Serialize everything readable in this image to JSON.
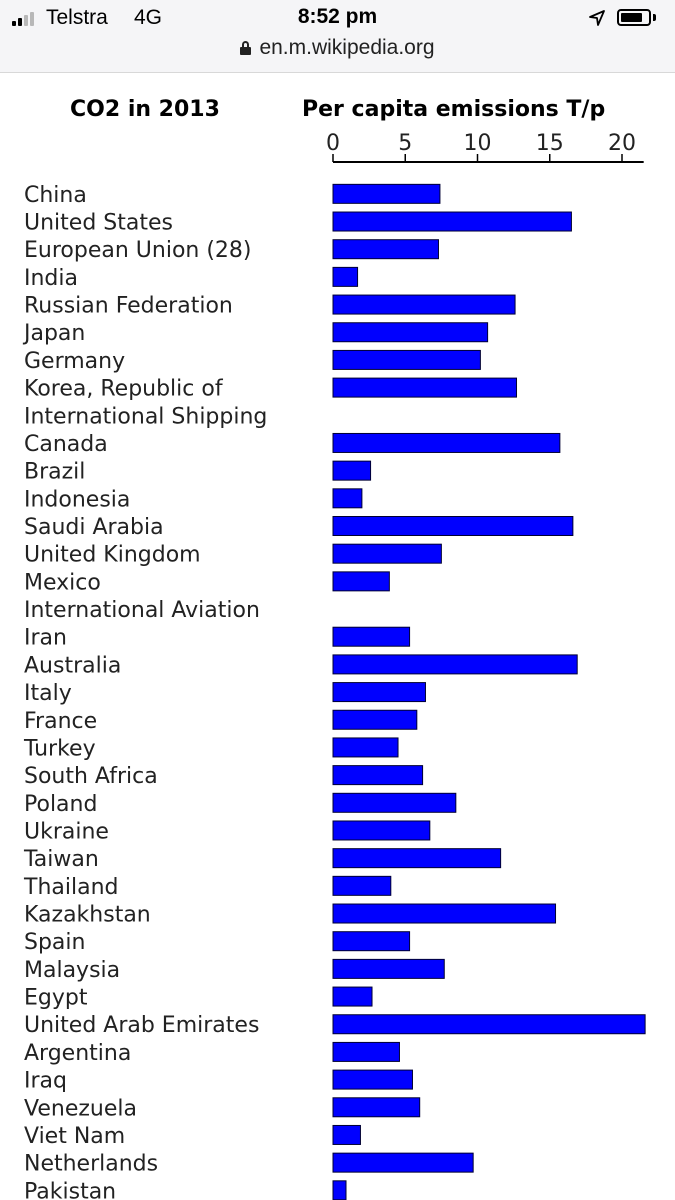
{
  "status_bar": {
    "carrier": "Telstra",
    "network": "4G",
    "time": "8:52 pm",
    "signal_bars_active": 2,
    "signal_bars_total": 4,
    "battery_level": 0.8
  },
  "url_bar": {
    "url": "en.m.wikipedia.org",
    "icon": "lock-icon"
  },
  "chart_data": {
    "type": "bar",
    "orientation": "horizontal",
    "title": "CO2 in 2013",
    "subtitle": "Per capita emissions T/p",
    "xlim": [
      0,
      21.5
    ],
    "xticks": [
      0,
      5,
      10,
      15,
      20
    ],
    "bar_color": "#0000ff",
    "categories": [
      "China",
      "United States",
      "European Union (28)",
      "India",
      "Russian Federation",
      "Japan",
      "Germany",
      "Korea, Republic of",
      "International Shipping",
      "Canada",
      "Brazil",
      "Indonesia",
      "Saudi Arabia",
      "United Kingdom",
      "Mexico",
      "International Aviation",
      "Iran",
      "Australia",
      "Italy",
      "France",
      "Turkey",
      "South Africa",
      "Poland",
      "Ukraine",
      "Taiwan",
      "Thailand",
      "Kazakhstan",
      "Spain",
      "Malaysia",
      "Egypt",
      "United Arab Emirates",
      "Argentina",
      "Iraq",
      "Venezuela",
      "Viet Nam",
      "Netherlands",
      "Pakistan"
    ],
    "values": [
      7.4,
      16.5,
      7.3,
      1.7,
      12.6,
      10.7,
      10.2,
      12.7,
      null,
      15.7,
      2.6,
      2.0,
      16.6,
      7.5,
      3.9,
      null,
      5.3,
      16.9,
      6.4,
      5.8,
      4.5,
      6.2,
      8.5,
      6.7,
      11.6,
      4.0,
      15.4,
      5.3,
      7.7,
      2.7,
      21.6,
      4.6,
      5.5,
      6.0,
      1.9,
      9.7,
      0.9
    ]
  }
}
